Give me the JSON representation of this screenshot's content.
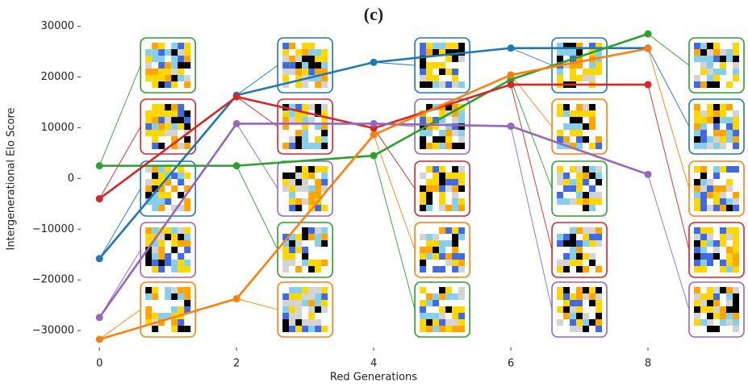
{
  "chart_data": {
    "type": "line",
    "title": "(c)",
    "xlabel": "Red Generations",
    "ylabel": "Intergenerational Elo Score",
    "x": [
      0,
      2,
      4,
      6,
      8
    ],
    "series": [
      {
        "color": "#1f77b4",
        "values": [
          -15800,
          16400,
          22900,
          25700,
          25700
        ]
      },
      {
        "color": "#2ca02c",
        "values": [
          2500,
          2500,
          4500,
          19500,
          28500
        ]
      },
      {
        "color": "#d62728",
        "values": [
          -4000,
          16100,
          9900,
          18500,
          18500
        ]
      },
      {
        "color": "#9467bd",
        "values": [
          -27400,
          10800,
          10800,
          10300,
          800
        ]
      },
      {
        "color": "#ff7f0e",
        "values": [
          -31700,
          -23700,
          8600,
          20400,
          25600
        ]
      }
    ],
    "xlim": [
      -0.25,
      9.4
    ],
    "ylim": [
      -33000,
      32000
    ],
    "xticks": [
      0,
      2,
      4,
      6,
      8
    ],
    "yticks": [
      {
        "value": -30000,
        "label": "−30000"
      },
      {
        "value": -20000,
        "label": "−20000"
      },
      {
        "value": -10000,
        "label": "−10000"
      },
      0,
      10000,
      20000,
      30000
    ],
    "grid": false
  }
}
